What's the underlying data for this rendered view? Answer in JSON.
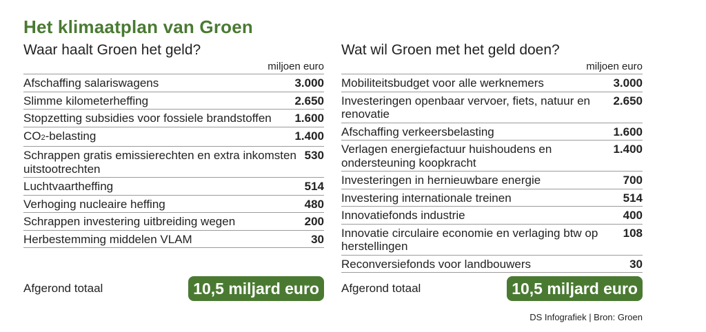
{
  "title": "Het klimaatplan van Groen",
  "left": {
    "subtitle": "Waar haalt Groen het geld?",
    "unit": "miljoen euro",
    "rows": [
      {
        "label": "Afschaffing salariswagens",
        "value": "3.000"
      },
      {
        "label": "Slimme kilometerheffing",
        "value": "2.650"
      },
      {
        "label": "Stopzetting subsidies voor fossiele brandstoffen",
        "value": "1.600"
      },
      {
        "label_pre": "CO",
        "label_sub": "2",
        "label_post": "-belasting",
        "value": "1.400"
      },
      {
        "label": "Schrappen gratis emissierechten en extra inkomsten uitstootrechten",
        "value": "530"
      },
      {
        "label": "Luchtvaartheffing",
        "value": "514"
      },
      {
        "label": "Verhoging nucleaire heffing",
        "value": "480"
      },
      {
        "label": "Schrappen investering uitbreiding wegen",
        "value": "200"
      },
      {
        "label": "Herbestemming middelen VLAM",
        "value": "30"
      }
    ],
    "total_label": "Afgerond totaal",
    "total_value": "10,5 miljard euro"
  },
  "right": {
    "subtitle": "Wat wil Groen met het geld doen?",
    "unit": "miljoen euro",
    "rows": [
      {
        "label": "Mobiliteitsbudget voor alle werknemers",
        "value": "3.000"
      },
      {
        "label": "Investeringen openbaar vervoer, fiets, natuur en renovatie",
        "value": "2.650"
      },
      {
        "label": "Afschaffing verkeersbelasting",
        "value": "1.600"
      },
      {
        "label": "Verlagen energiefactuur huishoudens en ondersteuning koopkracht",
        "value": "1.400"
      },
      {
        "label": "Investeringen in hernieuwbare energie",
        "value": "700"
      },
      {
        "label": "Investering internationale treinen",
        "value": "514"
      },
      {
        "label": "Innovatiefonds industrie",
        "value": "400"
      },
      {
        "label": "Innovatie circulaire economie en verlaging btw op herstellingen",
        "value": "108"
      },
      {
        "label": "Reconversiefonds voor landbouwers",
        "value": "30"
      }
    ],
    "total_label": "Afgerond totaal",
    "total_value": "10,5 miljard euro"
  },
  "credit": "DS Infografiek | Bron: Groen",
  "colors": {
    "accent": "#4a7a32",
    "rule": "#9a9a9a"
  }
}
